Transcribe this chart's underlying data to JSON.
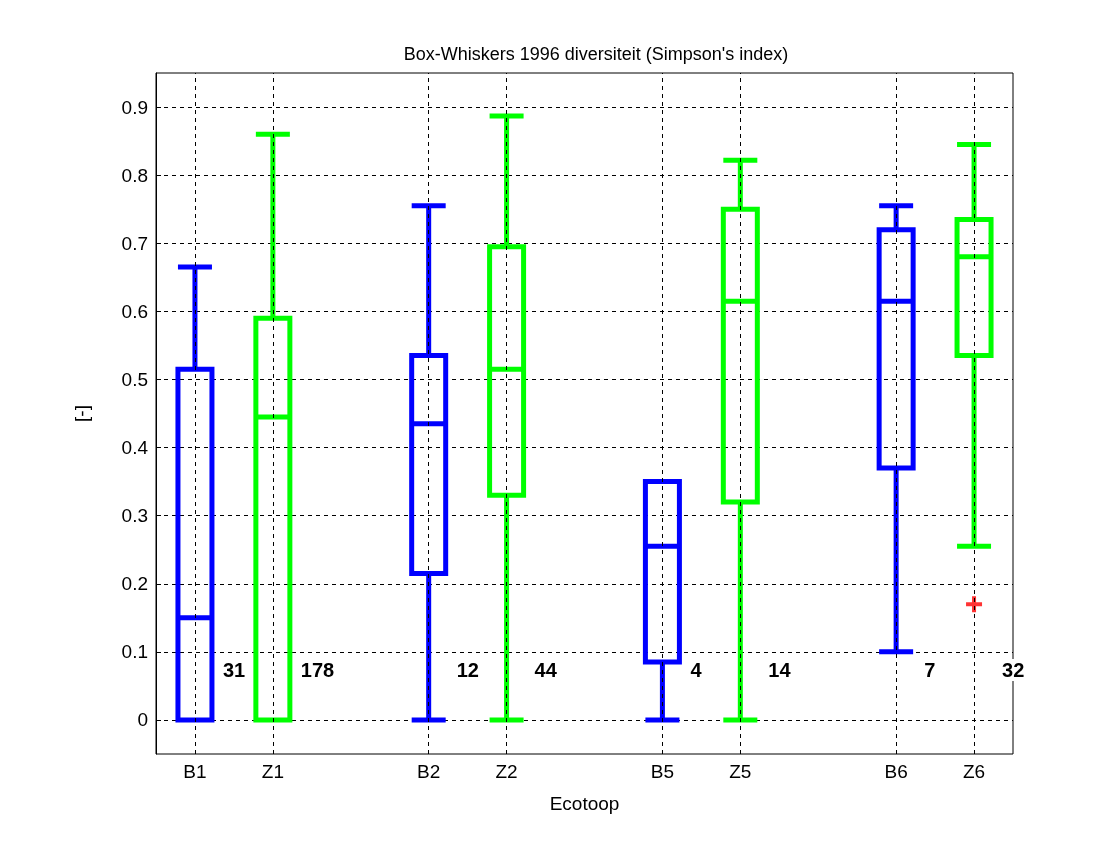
{
  "chart_data": {
    "type": "box",
    "title": "Box-Whiskers 1996 diversiteit (Simpson's index)",
    "xlabel": "Ecotoop",
    "ylabel": "[-]",
    "categories": [
      "B1",
      "Z1",
      null,
      "B2",
      "Z2",
      null,
      "B5",
      "Z5",
      null,
      "B6",
      "Z6"
    ],
    "boxes": [
      {
        "low": 0,
        "q1": 0,
        "median": 0.15,
        "q3": 0.515,
        "high": 0.665
      },
      {
        "low": 0,
        "q1": 0,
        "median": 0.445,
        "q3": 0.59,
        "high": 0.86
      },
      null,
      {
        "low": 0,
        "q1": 0.215,
        "median": 0.435,
        "q3": 0.535,
        "high": 0.755
      },
      {
        "low": 0,
        "q1": 0.33,
        "median": 0.515,
        "q3": 0.695,
        "high": 0.887
      },
      null,
      {
        "low": 0,
        "q1": 0.085,
        "median": 0.255,
        "q3": 0.35,
        "high": 0.35
      },
      {
        "low": 0,
        "q1": 0.32,
        "median": 0.615,
        "q3": 0.75,
        "high": 0.822
      },
      null,
      {
        "low": 0.1,
        "q1": 0.37,
        "median": 0.615,
        "q3": 0.72,
        "high": 0.755
      },
      {
        "low": 0.255,
        "q1": 0.535,
        "median": 0.68,
        "q3": 0.735,
        "high": 0.845,
        "outliers": [
          0.17
        ]
      }
    ],
    "colors": [
      "#0000ff",
      "#00ff00",
      null,
      "#0000ff",
      "#00ff00",
      null,
      "#0000ff",
      "#00ff00",
      null,
      "#0000ff",
      "#00ff00"
    ],
    "annotations": [
      "31",
      "178",
      "12",
      "44",
      "4",
      "14",
      "7",
      "32"
    ],
    "ylim": [
      -0.05,
      0.95
    ],
    "yticks": [
      0,
      0.1,
      0.2,
      0.3,
      0.4,
      0.5,
      0.6,
      0.7,
      0.8,
      0.9
    ],
    "grid": true
  }
}
